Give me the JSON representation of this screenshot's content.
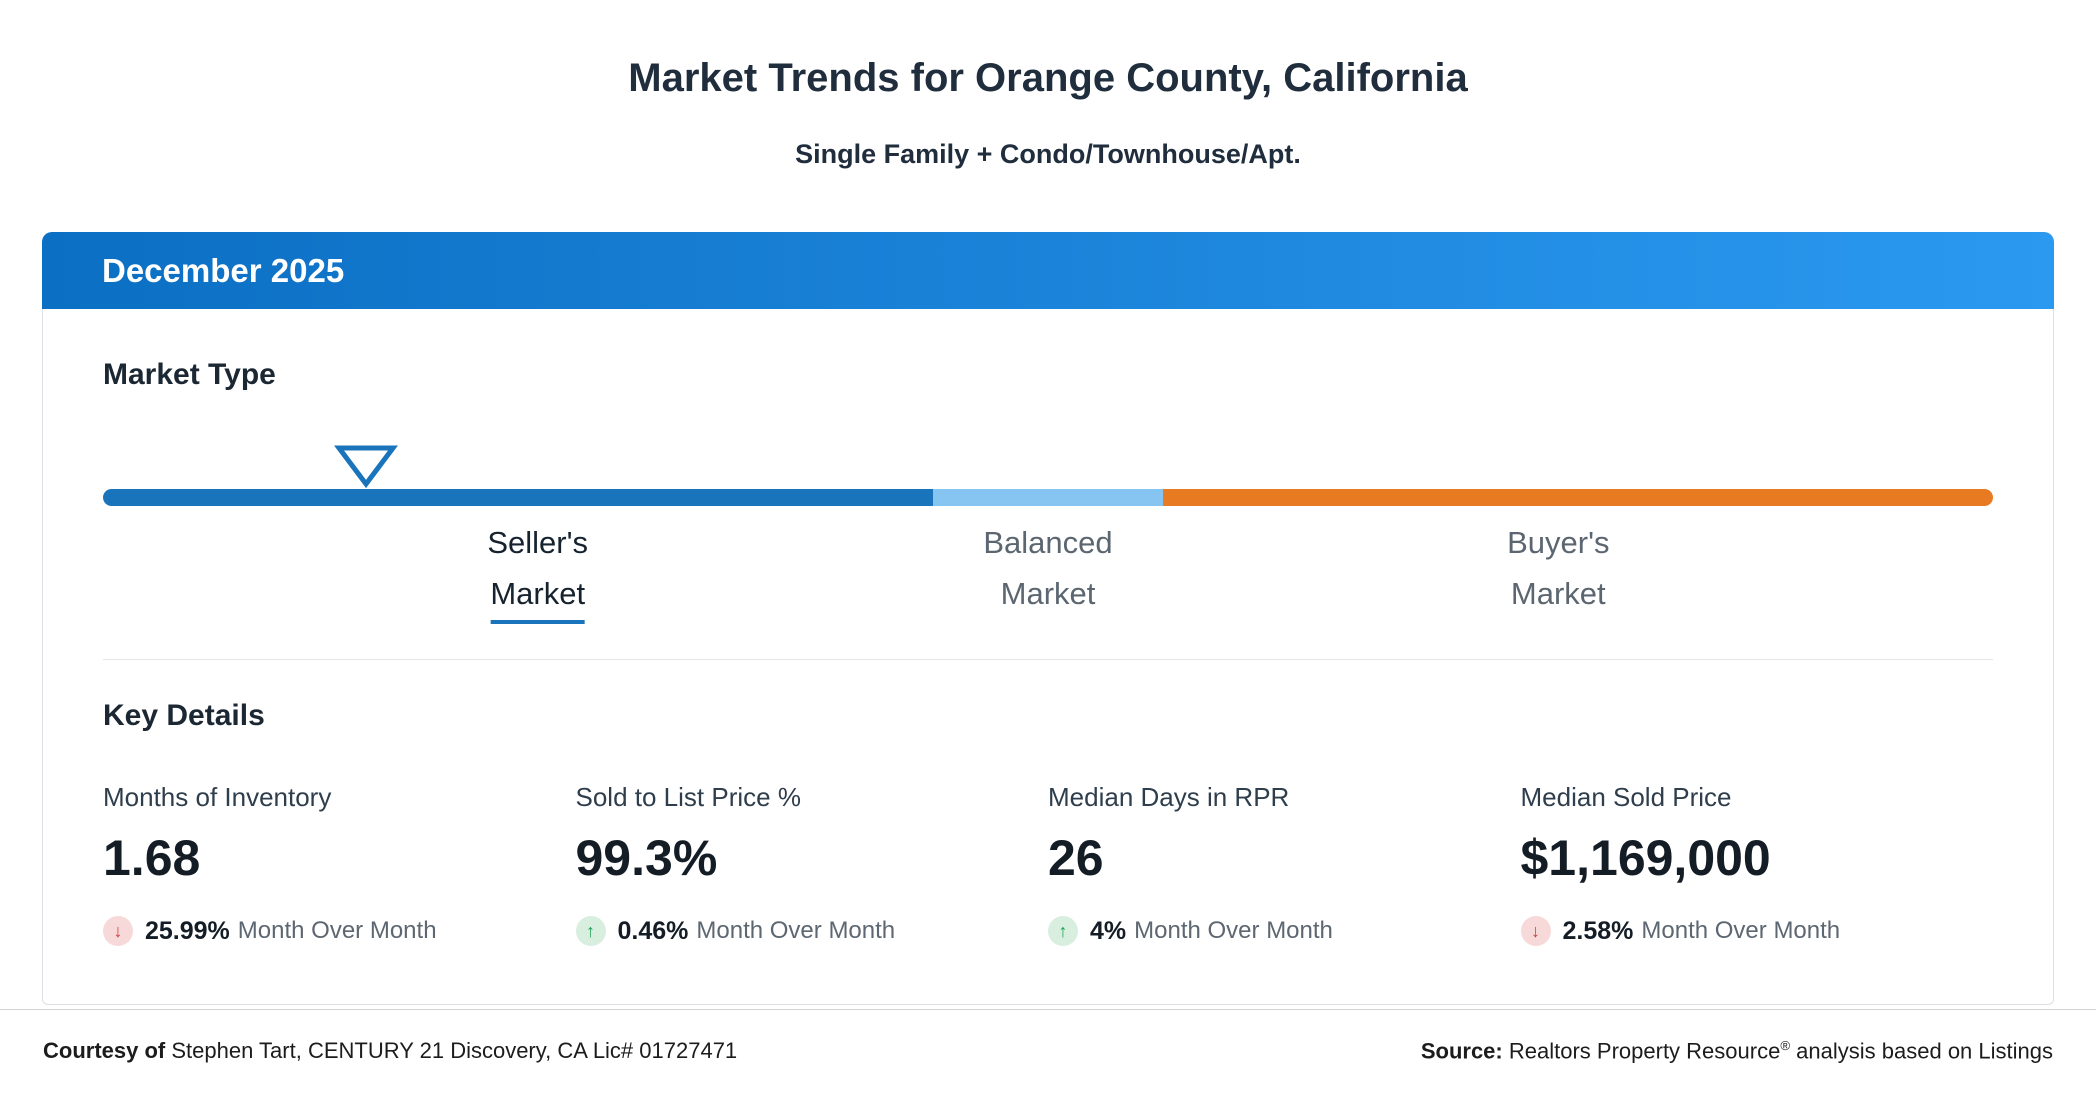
{
  "page": {
    "title": "Market Trends for Orange County, California",
    "subtitle": "Single Family + Condo/Townhouse/Apt."
  },
  "card": {
    "period": "December 2025",
    "market_type": {
      "heading": "Market Type",
      "labels": [
        {
          "line1": "Seller's",
          "line2": "Market",
          "active": true
        },
        {
          "line1": "Balanced",
          "line2": "Market",
          "active": false
        },
        {
          "line1": "Buyer's",
          "line2": "Market",
          "active": false
        }
      ]
    },
    "key_details": {
      "heading": "Key Details",
      "metrics": [
        {
          "label": "Months of Inventory",
          "value": "1.68",
          "direction": "down",
          "arrow": "↓",
          "change": "25.99%",
          "period": "Month Over Month"
        },
        {
          "label": "Sold to List Price %",
          "value": "99.3%",
          "direction": "up",
          "arrow": "↑",
          "change": "0.46%",
          "period": "Month Over Month"
        },
        {
          "label": "Median Days in RPR",
          "value": "26",
          "direction": "up",
          "arrow": "↑",
          "change": "4%",
          "period": "Month Over Month"
        },
        {
          "label": "Median Sold Price",
          "value": "$1,169,000",
          "direction": "down",
          "arrow": "↓",
          "change": "2.58%",
          "period": "Month Over Month"
        }
      ]
    }
  },
  "footer": {
    "courtesy_label": "Courtesy of",
    "courtesy_text": "Stephen Tart, CENTURY 21 Discovery, CA Lic# 01727471",
    "source_label": "Source:",
    "source_name": "Realtors Property Resource",
    "source_reg": "®",
    "source_rest": "analysis based on Listings"
  },
  "colors": {
    "header_gradient_start": "#0b6fc3",
    "header_gradient_end": "#2b99f0",
    "seller_segment": "#1a74bc",
    "balanced_segment": "#86c4f2",
    "buyer_segment": "#e87a22",
    "up_green": "#1e9e50",
    "down_red": "#cf3b3b"
  },
  "chart_data": {
    "type": "gauge",
    "title": "Market Type",
    "indicator": {
      "label": "Seller's Market",
      "position_pct": 13.9
    },
    "segments": [
      {
        "label": "Seller's Market",
        "color": "#1a74bc",
        "width_pct": 43.9
      },
      {
        "label": "Balanced Market",
        "color": "#86c4f2",
        "width_pct": 12.2
      },
      {
        "label": "Buyer's Market",
        "color": "#e87a22",
        "width_pct": 43.9
      }
    ],
    "metrics": [
      {
        "label": "Months of Inventory",
        "value": 1.68,
        "mom_change_pct": -25.99
      },
      {
        "label": "Sold to List Price %",
        "value": 99.3,
        "mom_change_pct": 0.46
      },
      {
        "label": "Median Days in RPR",
        "value": 26,
        "mom_change_pct": 4
      },
      {
        "label": "Median Sold Price",
        "value": 1169000,
        "mom_change_pct": -2.58
      }
    ]
  }
}
